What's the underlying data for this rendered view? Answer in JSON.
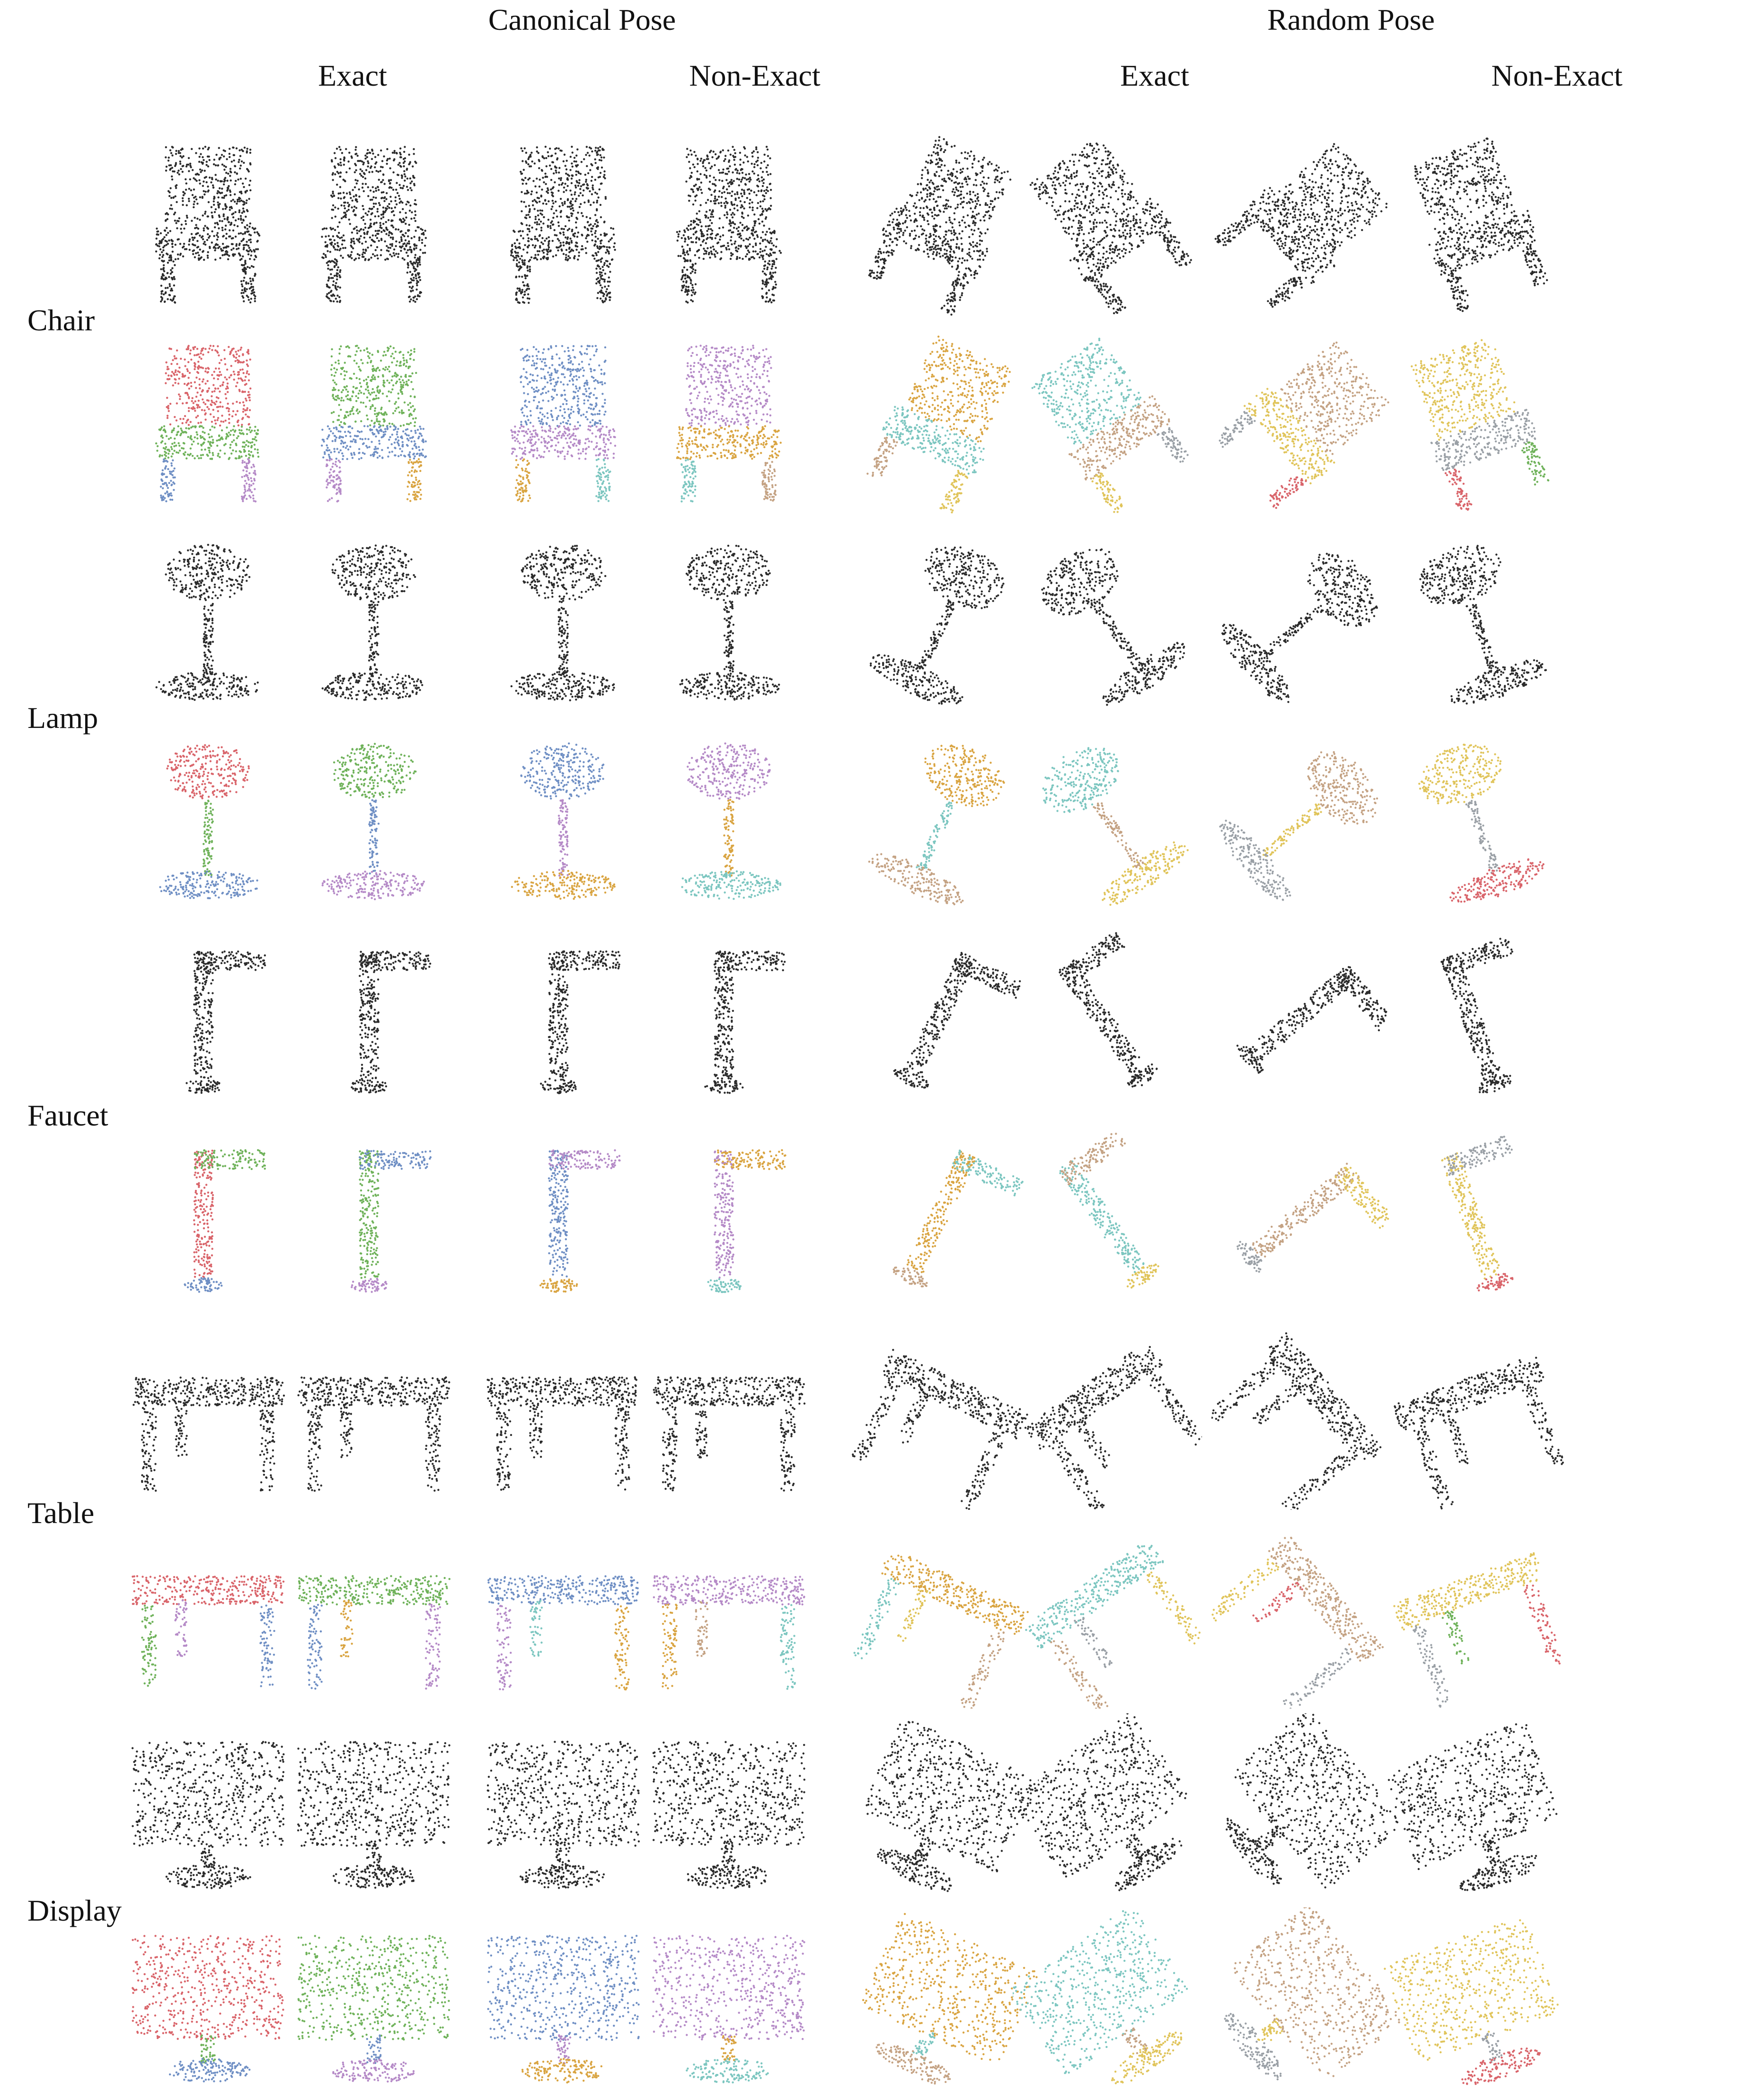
{
  "headers": {
    "canonical": "Canonical Pose",
    "random": "Random Pose",
    "exact_1": "Exact",
    "non_exact_1": "Non-Exact",
    "exact_2": "Exact",
    "non_exact_2": "Non-Exact"
  },
  "categories": [
    {
      "label": "Chair",
      "kind": "chair"
    },
    {
      "label": "Lamp",
      "kind": "lamp"
    },
    {
      "label": "Faucet",
      "kind": "faucet"
    },
    {
      "label": "Table",
      "kind": "table"
    },
    {
      "label": "Display",
      "kind": "display"
    }
  ],
  "palette": {
    "point_cloud": "#2b2b2b",
    "parts": [
      "#d9646a",
      "#6fb25a",
      "#6f8fc4",
      "#b58ac7",
      "#d9a441",
      "#7cc6c0",
      "#c4a283",
      "#e0c45a",
      "#9aa0a6"
    ]
  }
}
